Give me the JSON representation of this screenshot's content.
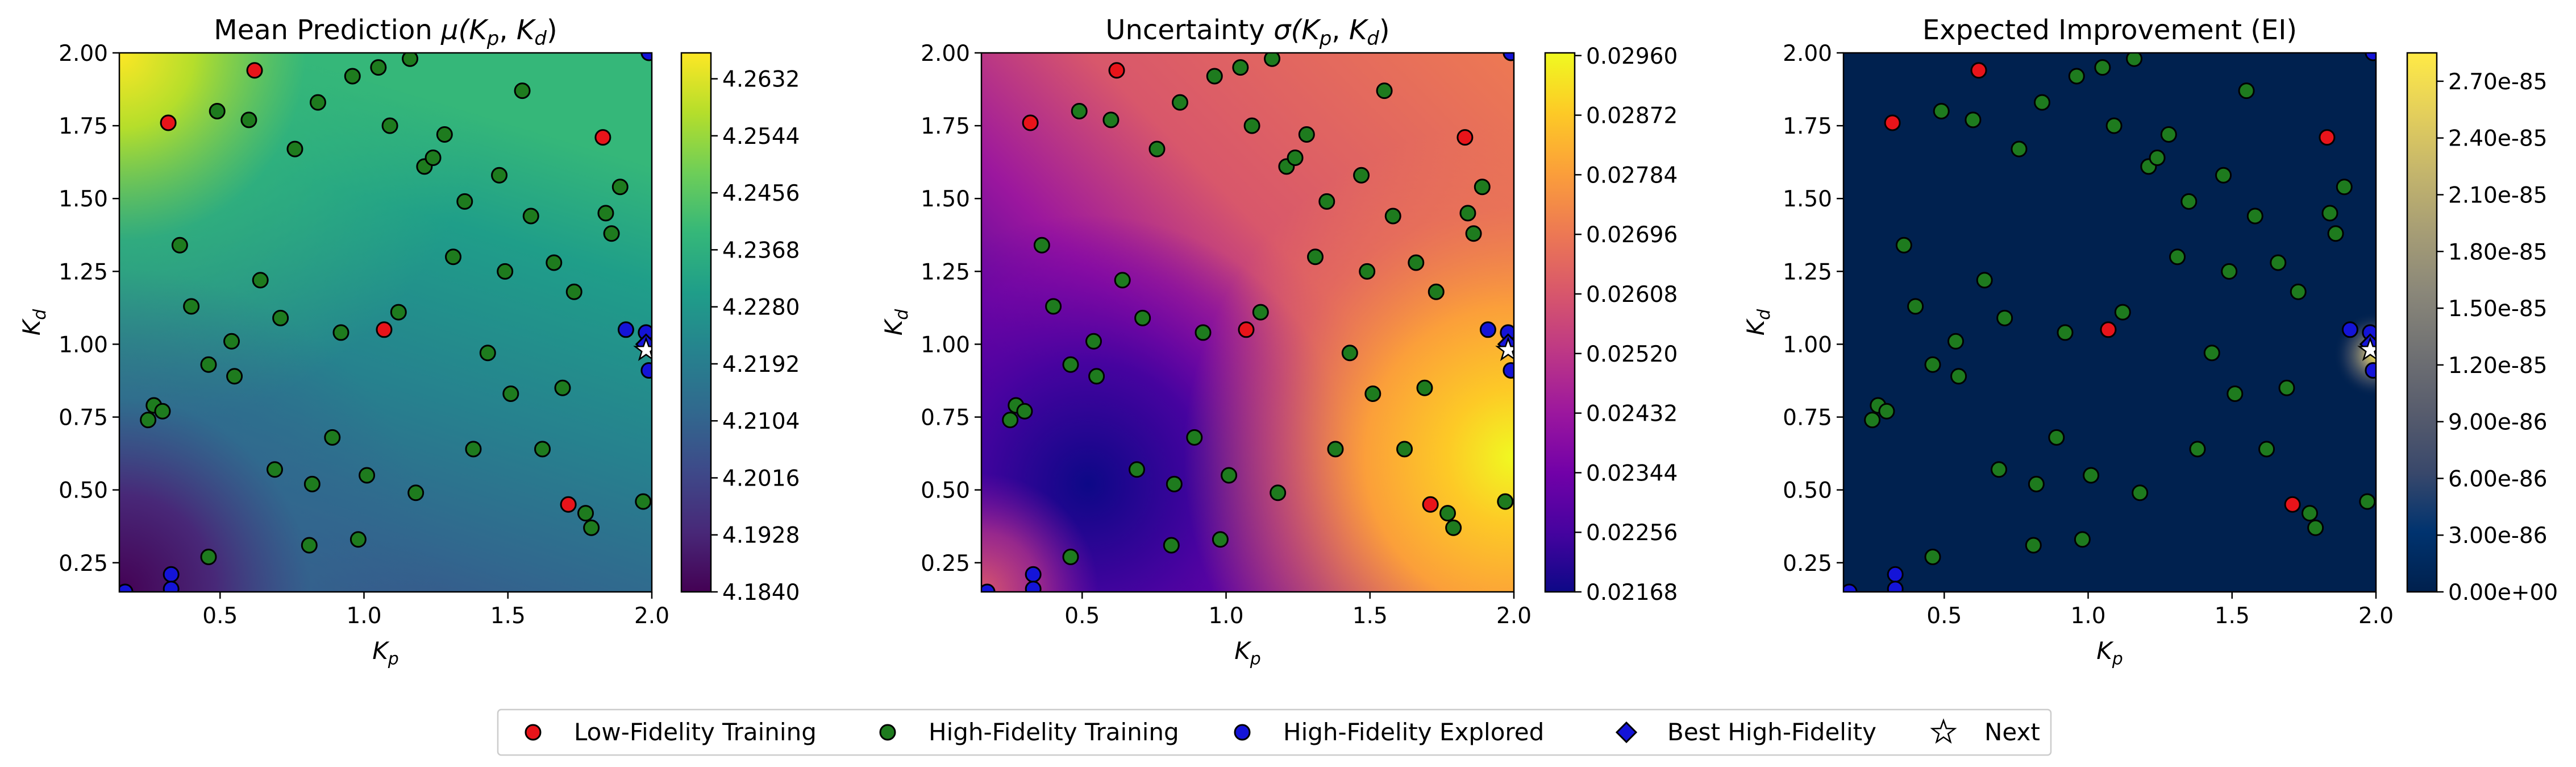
{
  "chart_data": [
    {
      "type": "heatmap",
      "title_prefix": "Mean Prediction ",
      "title_math": "μ(",
      "xlabel": "K",
      "xlabel_sub": "p",
      "ylabel": "K",
      "ylabel_sub": "d",
      "xlim": [
        0.15,
        2.0
      ],
      "ylim": [
        0.15,
        2.0
      ],
      "xticks": [
        "0.5",
        "1.0",
        "1.5",
        "2.0"
      ],
      "yticks": [
        "0.25",
        "0.50",
        "0.75",
        "1.00",
        "1.25",
        "1.50",
        "1.75",
        "2.00"
      ],
      "colormap": "viridis",
      "colorbar_ticks": [
        "4.1840",
        "4.1928",
        "4.2016",
        "4.2104",
        "4.2192",
        "4.2280",
        "4.2368",
        "4.2456",
        "4.2544",
        "4.2632"
      ],
      "colorbar_range": [
        4.184,
        4.2672
      ]
    },
    {
      "type": "heatmap",
      "title_prefix": "Uncertainty ",
      "title_math": "σ(",
      "xlabel": "K",
      "xlabel_sub": "p",
      "ylabel": "K",
      "ylabel_sub": "d",
      "xlim": [
        0.15,
        2.0
      ],
      "ylim": [
        0.15,
        2.0
      ],
      "xticks": [
        "0.5",
        "1.0",
        "1.5",
        "2.0"
      ],
      "yticks": [
        "0.25",
        "0.50",
        "0.75",
        "1.00",
        "1.25",
        "1.50",
        "1.75",
        "2.00"
      ],
      "colormap": "plasma",
      "colorbar_ticks": [
        "0.02168",
        "0.02256",
        "0.02344",
        "0.02432",
        "0.02520",
        "0.02608",
        "0.02696",
        "0.02784",
        "0.02872",
        "0.02960"
      ],
      "colorbar_range": [
        0.02168,
        0.02964
      ]
    },
    {
      "type": "heatmap",
      "title_prefix": "Expected Improvement (EI)",
      "title_math": "",
      "xlabel": "K",
      "xlabel_sub": "p",
      "ylabel": "K",
      "ylabel_sub": "d",
      "xlim": [
        0.15,
        2.0
      ],
      "ylim": [
        0.15,
        2.0
      ],
      "xticks": [
        "0.5",
        "1.0",
        "1.5",
        "2.0"
      ],
      "yticks": [
        "0.25",
        "0.50",
        "0.75",
        "1.00",
        "1.25",
        "1.50",
        "1.75",
        "2.00"
      ],
      "colormap": "cividis",
      "colorbar_ticks": [
        "0.00e+00",
        "3.00e-86",
        "6.00e-86",
        "9.00e-86",
        "1.20e-85",
        "1.50e-85",
        "1.80e-85",
        "2.10e-85",
        "2.40e-85",
        "2.70e-85"
      ],
      "colorbar_range": [
        0,
        2.85e-85
      ]
    }
  ],
  "title_math_parts": {
    "K": "K",
    "p": "p",
    "d": "d",
    "comma": ", ",
    "close": ")"
  },
  "points": {
    "low_fidelity": [
      [
        0.32,
        1.76
      ],
      [
        0.62,
        1.94
      ],
      [
        1.07,
        1.05
      ],
      [
        1.71,
        0.45
      ],
      [
        1.83,
        1.71
      ]
    ],
    "high_fidelity": [
      [
        0.25,
        0.74
      ],
      [
        0.27,
        0.79
      ],
      [
        0.3,
        0.77
      ],
      [
        0.36,
        1.34
      ],
      [
        0.4,
        1.13
      ],
      [
        0.46,
        0.93
      ],
      [
        0.46,
        0.27
      ],
      [
        0.49,
        1.8
      ],
      [
        0.54,
        1.01
      ],
      [
        0.55,
        0.89
      ],
      [
        0.6,
        1.77
      ],
      [
        0.64,
        1.22
      ],
      [
        0.69,
        0.57
      ],
      [
        0.71,
        1.09
      ],
      [
        0.76,
        1.67
      ],
      [
        0.81,
        0.31
      ],
      [
        0.82,
        0.52
      ],
      [
        0.84,
        1.83
      ],
      [
        0.89,
        0.68
      ],
      [
        0.92,
        1.04
      ],
      [
        0.96,
        1.92
      ],
      [
        0.98,
        0.33
      ],
      [
        1.01,
        0.55
      ],
      [
        1.05,
        1.95
      ],
      [
        1.09,
        1.75
      ],
      [
        1.12,
        1.11
      ],
      [
        1.16,
        1.98
      ],
      [
        1.18,
        0.49
      ],
      [
        1.21,
        1.61
      ],
      [
        1.24,
        1.64
      ],
      [
        1.28,
        1.72
      ],
      [
        1.31,
        1.3
      ],
      [
        1.35,
        1.49
      ],
      [
        1.38,
        0.64
      ],
      [
        1.43,
        0.97
      ],
      [
        1.47,
        1.58
      ],
      [
        1.49,
        1.25
      ],
      [
        1.51,
        0.83
      ],
      [
        1.55,
        1.87
      ],
      [
        1.58,
        1.44
      ],
      [
        1.62,
        0.64
      ],
      [
        1.66,
        1.28
      ],
      [
        1.69,
        0.85
      ],
      [
        1.73,
        1.18
      ],
      [
        1.77,
        0.42
      ],
      [
        1.79,
        0.37
      ],
      [
        1.84,
        1.45
      ],
      [
        1.86,
        1.38
      ],
      [
        1.89,
        1.54
      ],
      [
        1.97,
        0.46
      ]
    ],
    "high_fidelity_explored": [
      [
        0.17,
        0.15
      ],
      [
        0.33,
        0.21
      ],
      [
        0.33,
        0.16
      ],
      [
        1.91,
        1.05
      ],
      [
        1.98,
        1.04
      ],
      [
        1.99,
        0.91
      ],
      [
        1.99,
        2.0
      ]
    ],
    "best_high_fidelity": [
      1.98,
      1.0
    ],
    "next": [
      1.98,
      0.98
    ]
  },
  "legend": {
    "items": [
      {
        "label": "Low-Fidelity Training",
        "marker": "circle",
        "color": "#e8141a"
      },
      {
        "label": "High-Fidelity Training",
        "marker": "circle",
        "color": "#1e7b1e"
      },
      {
        "label": "High-Fidelity Explored",
        "marker": "circle",
        "color": "#1414d8"
      },
      {
        "label": "Best High-Fidelity",
        "marker": "diamond",
        "color": "#1414d8"
      },
      {
        "label": "Next",
        "marker": "star",
        "color": "#ffffff"
      }
    ]
  }
}
